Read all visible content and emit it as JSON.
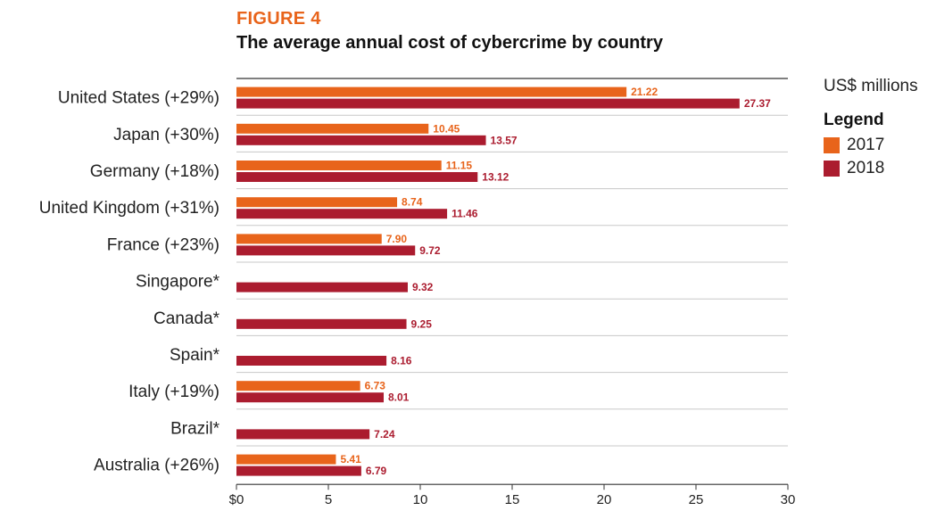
{
  "figure_label": "FIGURE 4",
  "title": "The average annual cost of cybercrime by country",
  "units": "US$ millions",
  "legend": {
    "title": "Legend",
    "items": [
      {
        "label": "2017",
        "color": "#e8641b"
      },
      {
        "label": "2018",
        "color": "#ab1c2f"
      }
    ]
  },
  "chart_data": {
    "type": "bar",
    "orientation": "horizontal",
    "title": "The average annual cost of cybercrime by country",
    "xlabel": "",
    "ylabel": "",
    "units": "US$ millions",
    "xlim": [
      0,
      30
    ],
    "xticks": [
      0,
      5,
      10,
      15,
      20,
      25,
      30
    ],
    "xtick_labels": [
      "$0",
      "5",
      "10",
      "15",
      "20",
      "25",
      "30"
    ],
    "categories": [
      "United States (+29%)",
      "Japan (+30%)",
      "Germany (+18%)",
      "United Kingdom (+31%)",
      "France (+23%)",
      "Singapore*",
      "Canada*",
      "Spain*",
      "Italy (+19%)",
      "Brazil*",
      "Australia (+26%)"
    ],
    "series": [
      {
        "name": "2017",
        "color": "#e8641b",
        "values": [
          21.22,
          10.45,
          11.15,
          8.74,
          7.9,
          null,
          null,
          null,
          6.73,
          null,
          5.41
        ]
      },
      {
        "name": "2018",
        "color": "#ab1c2f",
        "values": [
          27.37,
          13.57,
          13.12,
          11.46,
          9.72,
          9.32,
          9.25,
          8.16,
          8.01,
          7.24,
          6.79
        ]
      }
    ],
    "value_labels": [
      [
        "21.22",
        "10.45",
        "11.15",
        "8.74",
        "7.90",
        null,
        null,
        null,
        "6.73",
        null,
        "5.41"
      ],
      [
        "27.37",
        "13.57",
        "13.12",
        "11.46",
        "9.72",
        "9.32",
        "9.25",
        "8.16",
        "8.01",
        "7.24",
        "6.79"
      ]
    ],
    "legend_position": "right"
  }
}
